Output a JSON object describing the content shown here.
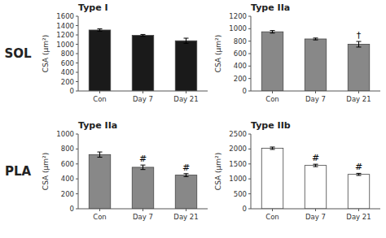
{
  "chart_data": [
    {
      "type": "bar",
      "title": "Type I",
      "ylabel": "CSA (μm²)",
      "categories": [
        "Con",
        "Day 7",
        "Day 21"
      ],
      "values": [
        1305,
        1190,
        1075
      ],
      "errors": [
        25,
        20,
        55
      ],
      "color": "#1a1a1a",
      "ylim": [
        0,
        1600
      ],
      "yticks": [
        0,
        200,
        400,
        600,
        800,
        1000,
        1200,
        1400,
        1600
      ],
      "grid": false,
      "annotations": []
    },
    {
      "type": "bar",
      "title": "Type IIa",
      "ylabel": "CSA (μm²)",
      "categories": [
        "Con",
        "Day 7",
        "Day 21"
      ],
      "values": [
        950,
        835,
        750
      ],
      "errors": [
        20,
        15,
        45
      ],
      "color": "#888888",
      "ylim": [
        0,
        1200
      ],
      "yticks": [
        0,
        200,
        400,
        600,
        800,
        1000,
        1200
      ],
      "grid": false,
      "annotations": [
        {
          "category": "Day 21",
          "text": "†"
        }
      ]
    },
    {
      "type": "bar",
      "title": "Type IIa",
      "ylabel": "CSA (μm²)",
      "categories": [
        "Con",
        "Day 7",
        "Day 21"
      ],
      "values": [
        725,
        555,
        450
      ],
      "errors": [
        35,
        30,
        20
      ],
      "color": "#888888",
      "ylim": [
        0,
        1000
      ],
      "yticks": [
        0,
        200,
        400,
        600,
        800,
        1000
      ],
      "grid": false,
      "annotations": [
        {
          "category": "Day 7",
          "text": "#"
        },
        {
          "category": "Day 21",
          "text": "#"
        }
      ]
    },
    {
      "type": "bar",
      "title": "Type IIb",
      "ylabel": "CSA (μm²)",
      "categories": [
        "Con",
        "Day 7",
        "Day 21"
      ],
      "values": [
        2025,
        1450,
        1150
      ],
      "errors": [
        40,
        40,
        35
      ],
      "color": "#ffffff",
      "ylim": [
        0,
        2500
      ],
      "yticks": [
        0,
        500,
        1000,
        1500,
        2000,
        2500
      ],
      "grid": false,
      "annotations": [
        {
          "category": "Day 7",
          "text": "#"
        },
        {
          "category": "Day 21",
          "text": "#"
        }
      ]
    }
  ],
  "row_labels": [
    "SOL",
    "PLA"
  ]
}
